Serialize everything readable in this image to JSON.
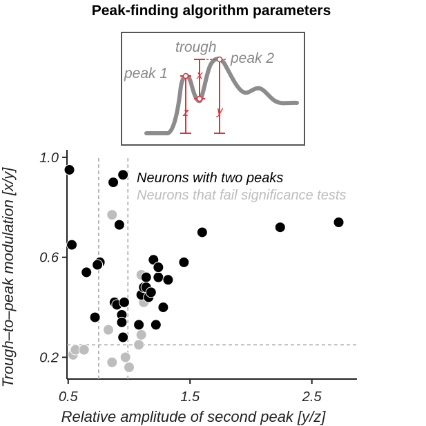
{
  "chart_data": {
    "type": "scatter",
    "title": "Peak-finding algorithm parameters",
    "xlabel": "Relative amplitude of second peak [y/z]",
    "ylabel": "Trough–to–peak modulation [x/y]",
    "xlim": [
      0.49,
      2.87
    ],
    "ylim": [
      0.113,
      1.03
    ],
    "xticks": [
      0.5,
      1.5,
      2.5
    ],
    "xtick_labels": [
      "0.5",
      "1.5",
      "2.5"
    ],
    "yticks": [
      0.2,
      0.6,
      1.0
    ],
    "ytick_labels": [
      "0.2",
      "0.6",
      "1.0"
    ],
    "grid": false,
    "legend_position": "top-right",
    "thresholds": {
      "x": [
        0.75,
        0.99
      ],
      "y": [
        0.25
      ]
    },
    "inset": {
      "labels": {
        "trough": "trough",
        "peak1": "peak 1",
        "peak2": "peak 2"
      },
      "vars": {
        "x": "x",
        "y": "y",
        "z": "z"
      },
      "colors": {
        "trace": "#8c8c8c",
        "markers": "#e0303a",
        "frame": "#555555"
      }
    },
    "series": [
      {
        "name": "Neurons with two peaks",
        "color": "#000000",
        "points": [
          [
            0.51,
            0.95
          ],
          [
            0.53,
            0.65
          ],
          [
            0.65,
            0.54
          ],
          [
            0.72,
            0.36
          ],
          [
            0.76,
            0.58
          ],
          [
            0.74,
            0.57
          ],
          [
            0.87,
            0.9
          ],
          [
            0.95,
            0.93
          ],
          [
            0.92,
            0.73
          ],
          [
            0.88,
            0.42
          ],
          [
            0.9,
            0.41
          ],
          [
            0.96,
            0.42
          ],
          [
            0.94,
            0.37
          ],
          [
            0.95,
            0.28
          ],
          [
            0.94,
            0.34
          ],
          [
            1.08,
            0.33
          ],
          [
            1.1,
            0.45
          ],
          [
            1.12,
            0.48
          ],
          [
            1.16,
            0.44
          ],
          [
            1.14,
            0.52
          ],
          [
            1.14,
            0.48
          ],
          [
            1.18,
            0.46
          ],
          [
            1.2,
            0.59
          ],
          [
            1.22,
            0.33
          ],
          [
            1.24,
            0.52
          ],
          [
            1.28,
            0.4
          ],
          [
            1.24,
            0.56
          ],
          [
            1.32,
            0.51
          ],
          [
            1.45,
            0.58
          ],
          [
            1.6,
            0.7
          ],
          [
            2.24,
            0.72
          ],
          [
            2.72,
            0.74
          ]
        ]
      },
      {
        "name": "Neurons that fail significance tests",
        "color": "#bdbdbd",
        "points": [
          [
            0.54,
            0.21
          ],
          [
            0.56,
            0.23
          ],
          [
            0.63,
            0.23
          ],
          [
            0.83,
            0.31
          ],
          [
            0.86,
            0.18
          ],
          [
            0.86,
            0.77
          ],
          [
            0.97,
            0.2
          ],
          [
            1.0,
            0.16
          ],
          [
            1.08,
            0.25
          ],
          [
            1.1,
            0.29
          ],
          [
            1.1,
            0.53
          ],
          [
            1.12,
            0.42
          ]
        ]
      }
    ]
  }
}
